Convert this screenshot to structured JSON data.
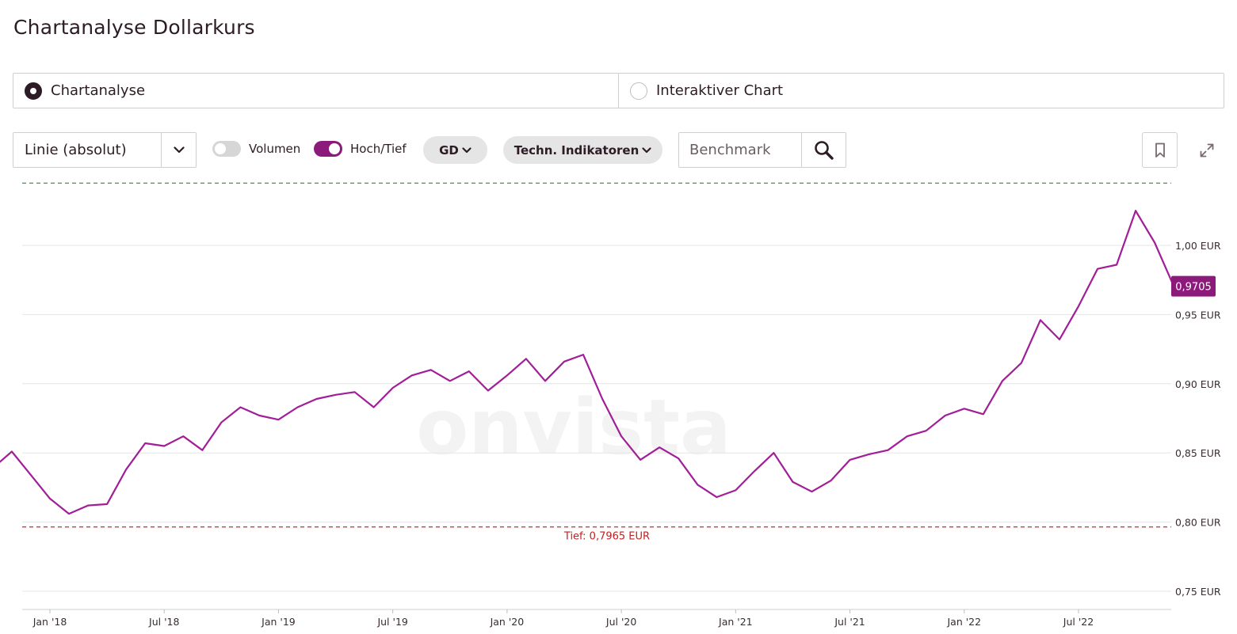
{
  "page_title": "Chartanalyse Dollarkurs",
  "mode_switch": {
    "options": [
      {
        "label": "Chartanalyse",
        "selected": true
      },
      {
        "label": "Interaktiver Chart",
        "selected": false
      }
    ]
  },
  "toolbar": {
    "chart_type": "Linie (absolut)",
    "toggles": [
      {
        "label": "Volumen",
        "on": false
      },
      {
        "label": "Hoch/Tief",
        "on": true
      }
    ],
    "gd_label": "GD",
    "indicators_label": "Techn. Indikatoren",
    "benchmark_placeholder": "Benchmark",
    "icons": {
      "chart_type_chevron": "chevron-down-icon",
      "search": "search-icon",
      "bookmark": "bookmark-icon",
      "expand": "expand-icon"
    }
  },
  "colors": {
    "accent": "#8c1a7b",
    "line": "#a11e98",
    "high_line": "#2ea62e",
    "low_line": "#d02a2a",
    "grid": "#e6e6e6"
  },
  "chart_data": {
    "type": "line",
    "title": "",
    "watermark": "onvista",
    "ylabel": "",
    "ylim": [
      0.75,
      1.0495
    ],
    "y_ticks": [
      0.75,
      0.8,
      0.85,
      0.9,
      0.95,
      1.0
    ],
    "y_tick_labels": [
      "0,75 EUR",
      "0,80 EUR",
      "0,85 EUR",
      "0,90 EUR",
      "0,95 EUR",
      "1,00 EUR"
    ],
    "x_ticks": [
      "Jan '18",
      "Jul '18",
      "Jan '19",
      "Jul '19",
      "Jan '20",
      "Jul '20",
      "Jan '21",
      "Jul '21",
      "Jan '22",
      "Jul '22"
    ],
    "x_range": [
      "2017-10",
      "2022-10"
    ],
    "grid": true,
    "high_line": {
      "value": 1.045,
      "label": ""
    },
    "low_line": {
      "value": 0.7965,
      "label": "Tief: 0,7965 EUR"
    },
    "last_value": {
      "value": 0.9705,
      "label": "0,9705"
    },
    "series": [
      {
        "x": [
          "2017-10",
          "2017-11",
          "2017-12",
          "2018-01",
          "2018-02",
          "2018-03",
          "2018-04",
          "2018-05",
          "2018-06",
          "2018-07",
          "2018-08",
          "2018-09",
          "2018-10",
          "2018-11",
          "2018-12",
          "2019-01",
          "2019-02",
          "2019-03",
          "2019-04",
          "2019-05",
          "2019-06",
          "2019-07",
          "2019-08",
          "2019-09",
          "2019-10",
          "2019-11",
          "2019-12",
          "2020-01",
          "2020-02",
          "2020-03",
          "2020-04",
          "2020-05",
          "2020-06",
          "2020-07",
          "2020-08",
          "2020-09",
          "2020-10",
          "2020-11",
          "2020-12",
          "2021-01",
          "2021-02",
          "2021-03",
          "2021-04",
          "2021-05",
          "2021-06",
          "2021-07",
          "2021-08",
          "2021-09",
          "2021-10",
          "2021-11",
          "2021-12",
          "2022-01",
          "2022-02",
          "2022-03",
          "2022-04",
          "2022-05",
          "2022-06",
          "2022-07",
          "2022-08",
          "2022-09",
          "2022-10"
        ],
        "values": [
          0.839,
          0.851,
          0.834,
          0.817,
          0.806,
          0.812,
          0.813,
          0.838,
          0.857,
          0.855,
          0.862,
          0.852,
          0.872,
          0.883,
          0.877,
          0.874,
          0.883,
          0.889,
          0.892,
          0.894,
          0.883,
          0.897,
          0.906,
          0.91,
          0.902,
          0.909,
          0.895,
          0.906,
          0.918,
          0.902,
          0.916,
          0.921,
          0.889,
          0.862,
          0.845,
          0.854,
          0.846,
          0.827,
          0.818,
          0.823,
          0.837,
          0.85,
          0.829,
          0.822,
          0.83,
          0.845,
          0.849,
          0.852,
          0.862,
          0.866,
          0.877,
          0.882,
          0.878,
          0.902,
          0.915,
          0.946,
          0.932,
          0.956,
          0.983,
          0.986,
          1.025
        ]
      },
      {
        "x": [
          "2022-10",
          "2022-11",
          "2022-12"
        ],
        "values": [
          1.025,
          1.002,
          0.9705
        ]
      }
    ]
  }
}
